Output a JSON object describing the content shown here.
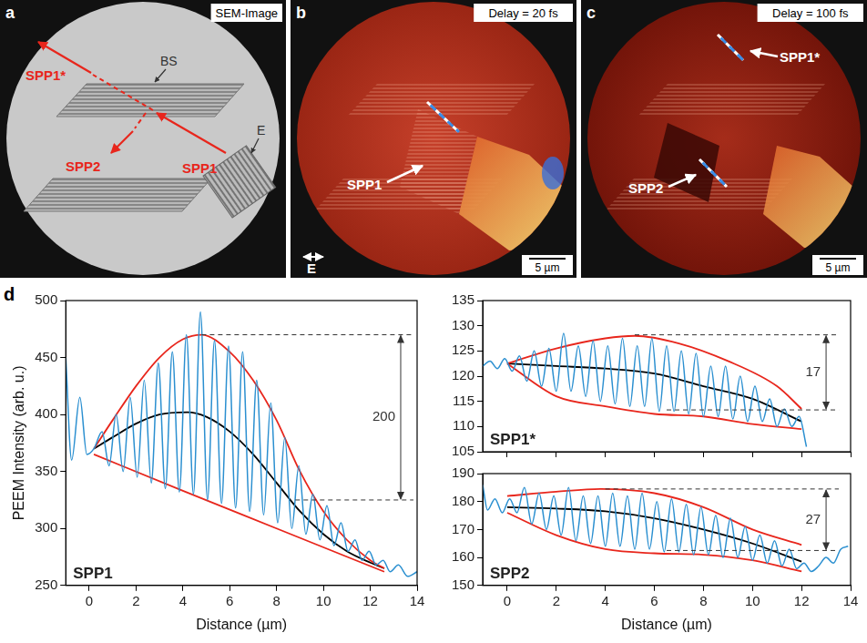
{
  "image_panels": [
    {
      "letter": "a",
      "label": "SEM-Image",
      "beam_splitter": "BS",
      "emitter": "E",
      "arrows": {
        "incident": "SPP1",
        "reflected": "SPP2",
        "transmitted": "SPP1*"
      }
    },
    {
      "letter": "b",
      "label": "Delay = 20 fs",
      "markers": [
        "SPP1"
      ],
      "field_label": "E",
      "scale_bar": "5 µm"
    },
    {
      "letter": "c",
      "label": "Delay = 100 fs",
      "markers": [
        "SPP1*",
        "SPP2"
      ],
      "scale_bar": "5 µm"
    }
  ],
  "chart_panel_letter": "d",
  "chart_data": [
    {
      "type": "line",
      "title": "SPP1",
      "x_label": "Distance (µm)",
      "y_label": "PEEM Intensity (arb. u.)",
      "xlim": [
        -1,
        14
      ],
      "xticks": [
        0,
        2,
        4,
        6,
        8,
        10,
        12,
        14
      ],
      "ylim": [
        250,
        500
      ],
      "yticks": [
        250,
        300,
        350,
        400,
        450,
        500
      ],
      "series": [
        {
          "color": "#2a8fd0",
          "x": [
            -1.0,
            -0.75,
            -0.4,
            -0.1,
            0.2,
            0.55,
            0.85,
            1.15,
            1.45,
            1.75,
            2.05,
            2.35,
            2.65,
            2.95,
            3.25,
            3.55,
            3.85,
            4.15,
            4.45,
            4.75,
            5.05,
            5.35,
            5.65,
            5.95,
            6.25,
            6.55,
            6.85,
            7.15,
            7.45,
            7.75,
            8.05,
            8.35,
            8.65,
            8.95,
            9.25,
            9.55,
            9.85,
            10.15,
            10.45,
            10.75,
            11.05,
            11.35,
            11.65,
            11.95,
            12.25,
            12.55,
            12.85,
            13.2,
            13.6,
            14.0
          ],
          "values": [
            450,
            360,
            415,
            365,
            370,
            385,
            355,
            400,
            350,
            415,
            345,
            430,
            340,
            445,
            335,
            455,
            332,
            470,
            330,
            490,
            325,
            465,
            322,
            460,
            318,
            455,
            315,
            430,
            312,
            410,
            305,
            380,
            300,
            355,
            295,
            330,
            290,
            320,
            285,
            305,
            280,
            290,
            272,
            280,
            268,
            272,
            262,
            268,
            258,
            262
          ]
        },
        {
          "color": "#e8261c",
          "x": [
            0.2,
            1,
            2,
            3,
            4,
            4.8,
            6,
            7,
            8,
            9,
            10,
            11,
            12,
            12.6
          ],
          "values": [
            370,
            395,
            425,
            450,
            466,
            470,
            455,
            430,
            395,
            350,
            315,
            290,
            272,
            265
          ]
        },
        {
          "color": "#e8261c",
          "x": [
            0.2,
            4,
            8,
            12.6
          ],
          "values": [
            365,
            333,
            300,
            262
          ]
        },
        {
          "color": "#000000",
          "x": [
            0.2,
            1,
            2,
            3,
            4.2,
            5,
            6,
            7,
            8,
            9,
            10,
            11,
            12,
            12.6
          ],
          "values": [
            370,
            380,
            392,
            400,
            402,
            398,
            385,
            365,
            340,
            315,
            295,
            280,
            270,
            265
          ]
        }
      ],
      "bracket": {
        "label": "200",
        "high": 470,
        "low": 325,
        "high_from": 4.8,
        "low_from": 8.8,
        "x": 13.3
      }
    },
    {
      "type": "line",
      "title": "SPP1*",
      "tick_labels": "y",
      "xlim": [
        -1,
        14
      ],
      "xticks": [
        0,
        2,
        4,
        6,
        8,
        10,
        12,
        14
      ],
      "ylim": [
        105,
        135
      ],
      "yticks": [
        105,
        110,
        115,
        120,
        125,
        130,
        135
      ],
      "series": [
        {
          "color": "#2a8fd0",
          "x": [
            -1,
            -0.7,
            -0.4,
            -0.1,
            0.2,
            0.5,
            0.8,
            1.1,
            1.4,
            1.7,
            2,
            2.3,
            2.6,
            2.9,
            3.2,
            3.5,
            3.8,
            4.1,
            4.4,
            4.7,
            5,
            5.3,
            5.6,
            5.9,
            6.2,
            6.5,
            6.8,
            7.1,
            7.4,
            7.7,
            8,
            8.3,
            8.6,
            8.9,
            9.2,
            9.5,
            9.8,
            10.1,
            10.4,
            10.7,
            11,
            11.3,
            11.6,
            11.9,
            12.2
          ],
          "values": [
            122,
            123,
            121.5,
            123.5,
            121,
            124,
            119,
            125,
            118,
            125.5,
            117,
            128.5,
            117,
            126,
            116,
            127,
            115,
            126,
            114.5,
            127.5,
            114,
            126,
            114,
            127.5,
            113,
            126,
            113,
            125,
            112.5,
            124.5,
            112,
            122,
            112,
            122,
            111.5,
            120,
            111,
            118,
            111,
            115.5,
            110,
            113.5,
            110,
            112,
            106
          ]
        },
        {
          "color": "#e8261c",
          "x": [
            0,
            2,
            4,
            5.2,
            7,
            9,
            11,
            12
          ],
          "values": [
            122.5,
            125.5,
            127.5,
            128,
            126.5,
            123,
            118,
            113.5
          ]
        },
        {
          "color": "#e8261c",
          "x": [
            0,
            2,
            4,
            6,
            8,
            10,
            12
          ],
          "values": [
            122.5,
            116,
            114,
            112.5,
            112,
            110.5,
            109.5
          ]
        },
        {
          "color": "#000000",
          "x": [
            0,
            2,
            4,
            6,
            8,
            10,
            12
          ],
          "values": [
            122.5,
            122,
            121.5,
            120.5,
            118,
            115.5,
            111
          ]
        }
      ],
      "bracket": {
        "label": "17",
        "high": 128.2,
        "low": 113.3,
        "high_from": 5.2,
        "low_from": 6.5,
        "x": 13
      }
    },
    {
      "type": "line",
      "title": "SPP2",
      "x_label": "Distance (µm)",
      "xlim": [
        -1,
        14
      ],
      "xticks": [
        0,
        2,
        4,
        6,
        8,
        10,
        12,
        14
      ],
      "ylim": [
        150,
        190
      ],
      "yticks": [
        150,
        160,
        170,
        180,
        190
      ],
      "series": [
        {
          "color": "#2a8fd0",
          "x": [
            -1,
            -0.8,
            -0.5,
            -0.2,
            0.1,
            0.4,
            0.7,
            1,
            1.3,
            1.6,
            1.9,
            2.2,
            2.5,
            2.8,
            3.1,
            3.4,
            3.7,
            4,
            4.3,
            4.6,
            4.9,
            5.2,
            5.5,
            5.8,
            6.1,
            6.4,
            6.7,
            7,
            7.3,
            7.6,
            7.9,
            8.2,
            8.5,
            8.8,
            9.1,
            9.4,
            9.7,
            10,
            10.3,
            10.6,
            10.9,
            11.2,
            11.5,
            11.8,
            12.1,
            12.4,
            12.7,
            13,
            13.3,
            13.6,
            13.9
          ],
          "values": [
            186,
            177,
            181,
            176,
            181,
            176,
            185,
            172,
            183,
            170,
            182,
            168,
            185,
            166,
            182,
            165,
            182,
            164,
            183,
            164,
            182,
            163,
            183,
            163,
            180,
            162,
            181,
            162,
            179,
            161,
            178,
            161,
            175,
            160,
            174,
            160,
            171,
            159,
            168,
            158,
            166,
            157,
            163,
            156,
            158,
            155,
            157,
            160,
            158,
            163,
            164
          ]
        },
        {
          "color": "#e8261c",
          "x": [
            0,
            2,
            3.8,
            6,
            8,
            10,
            12
          ],
          "values": [
            182,
            183.5,
            184.5,
            183,
            178,
            170,
            164.5
          ]
        },
        {
          "color": "#e8261c",
          "x": [
            0,
            2,
            4,
            6,
            8,
            10,
            12
          ],
          "values": [
            176,
            168,
            163,
            161.5,
            161,
            159,
            155
          ]
        },
        {
          "color": "#000000",
          "x": [
            0,
            2,
            4,
            6,
            8,
            10,
            12
          ],
          "values": [
            178,
            177.5,
            176.5,
            174,
            170,
            165,
            158.5
          ]
        }
      ],
      "bracket": {
        "label": "27",
        "high": 184.5,
        "low": 162.5,
        "high_from": 4,
        "low_from": 6.5,
        "x": 13
      }
    }
  ]
}
